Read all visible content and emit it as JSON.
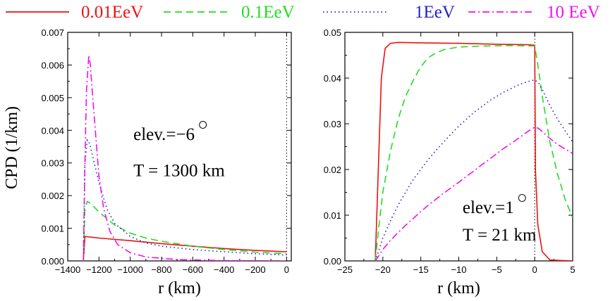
{
  "legend": [
    {
      "label": "0.01EeV",
      "color": "#ee1111",
      "dash": "solid"
    },
    {
      "label": "0.1EeV",
      "color": "#22dd22",
      "dash": "dashed"
    },
    {
      "label": "1EeV",
      "color": "#2222cc",
      "dash": "dotted"
    },
    {
      "label": "10 EeV",
      "color": "#ee11ee",
      "dash": "dashdot"
    }
  ],
  "ylabel": "CPD (1/km)",
  "chart_data": [
    {
      "type": "line",
      "xlabel": "r (km)",
      "ylabel": "CPD (1/km)",
      "xlim": [
        -1400,
        30
      ],
      "ylim": [
        0,
        0.007
      ],
      "xticks": [
        -1400,
        -1200,
        -1000,
        -800,
        -600,
        -400,
        -200,
        0
      ],
      "xtick_labels": [
        "−1400",
        "−1200",
        "−1000",
        "−800",
        "−600",
        "−400",
        "−200",
        "0"
      ],
      "yticks": [
        0,
        0.001,
        0.002,
        0.003,
        0.004,
        0.005,
        0.006,
        0.007
      ],
      "ytick_labels": [
        "0.000",
        "0.001",
        "0.002",
        "0.003",
        "0.004",
        "0.005",
        "0.006",
        "0.007"
      ],
      "vline_x": 0,
      "annotations": [
        {
          "text": "elev.=−6",
          "sup": "○",
          "x": -980,
          "y": 0.0037
        },
        {
          "text": "T = 1300 km",
          "x": -980,
          "y": 0.0026
        }
      ],
      "series": [
        {
          "name": "0.01EeV",
          "color": "#ee1111",
          "dash": "solid",
          "points": [
            [
              -1300,
              0
            ],
            [
              -1290,
              0.00075
            ],
            [
              -1200,
              0.0007
            ],
            [
              -1000,
              0.00062
            ],
            [
              -800,
              0.00053
            ],
            [
              -600,
              0.00045
            ],
            [
              -400,
              0.00038
            ],
            [
              -200,
              0.00032
            ],
            [
              0,
              0.00028
            ]
          ]
        },
        {
          "name": "0.1EeV",
          "color": "#22dd22",
          "dash": "dashed",
          "points": [
            [
              -1300,
              0
            ],
            [
              -1290,
              0.0016
            ],
            [
              -1275,
              0.00182
            ],
            [
              -1250,
              0.00175
            ],
            [
              -1200,
              0.0015
            ],
            [
              -1100,
              0.0011
            ],
            [
              -1000,
              0.00085
            ],
            [
              -900,
              0.0007
            ],
            [
              -800,
              0.0006
            ],
            [
              -600,
              0.00045
            ],
            [
              -400,
              0.00035
            ],
            [
              -200,
              0.00027
            ],
            [
              0,
              0.00022
            ]
          ]
        },
        {
          "name": "1EeV",
          "color": "#2222cc",
          "dash": "dotted",
          "points": [
            [
              -1300,
              0
            ],
            [
              -1290,
              0.003
            ],
            [
              -1275,
              0.0037
            ],
            [
              -1260,
              0.0036
            ],
            [
              -1240,
              0.0032
            ],
            [
              -1200,
              0.0024
            ],
            [
              -1150,
              0.0016
            ],
            [
              -1100,
              0.00115
            ],
            [
              -1000,
              0.00075
            ],
            [
              -900,
              0.00055
            ],
            [
              -800,
              0.00045
            ],
            [
              -600,
              0.00035
            ],
            [
              -400,
              0.00028
            ],
            [
              -200,
              0.00022
            ],
            [
              0,
              0.00018
            ]
          ]
        },
        {
          "name": "10 EeV",
          "color": "#ee11ee",
          "dash": "dashdot",
          "points": [
            [
              -1300,
              0
            ],
            [
              -1290,
              0.003
            ],
            [
              -1280,
              0.0052
            ],
            [
              -1265,
              0.0063
            ],
            [
              -1255,
              0.006
            ],
            [
              -1240,
              0.005
            ],
            [
              -1220,
              0.0038
            ],
            [
              -1200,
              0.0026
            ],
            [
              -1170,
              0.0016
            ],
            [
              -1130,
              0.0009
            ],
            [
              -1080,
              0.0005
            ],
            [
              -1000,
              0.00025
            ],
            [
              -900,
              0.00012
            ],
            [
              -700,
              4e-05
            ],
            [
              -400,
              1e-05
            ],
            [
              0,
              0.0
            ]
          ]
        }
      ]
    },
    {
      "type": "line",
      "xlabel": "r (km)",
      "xlim": [
        -25,
        5
      ],
      "ylim": [
        0,
        0.05
      ],
      "xticks": [
        -25,
        -20,
        -15,
        -10,
        -5,
        0,
        5
      ],
      "xtick_labels": [
        "−25",
        "−20",
        "−15",
        "−10",
        "−5",
        "0",
        "5"
      ],
      "yticks": [
        0,
        0.01,
        0.02,
        0.03,
        0.04,
        0.05
      ],
      "ytick_labels": [
        "0.00",
        "0.01",
        "0.02",
        "0.03",
        "0.04",
        "0.05"
      ],
      "vline_x": 0,
      "annotations": [
        {
          "text": "elev.=1",
          "sup": "○",
          "x": -9.5,
          "y": 0.0105
        },
        {
          "text": "T = 21 km",
          "x": -9.5,
          "y": 0.0045
        }
      ],
      "series": [
        {
          "name": "0.01EeV",
          "color": "#ee1111",
          "dash": "solid",
          "points": [
            [
              -21,
              0
            ],
            [
              -20.6,
              0.02
            ],
            [
              -20.2,
              0.04
            ],
            [
              -19.7,
              0.0465
            ],
            [
              -19.0,
              0.0476
            ],
            [
              -18,
              0.0478
            ],
            [
              -15,
              0.0477
            ],
            [
              -10,
              0.0476
            ],
            [
              -5,
              0.0474
            ],
            [
              -1,
              0.0473
            ],
            [
              0,
              0.0472
            ],
            [
              0.1,
              0.02
            ],
            [
              0.4,
              0.008
            ],
            [
              1,
              0.002
            ],
            [
              2,
              0.0002
            ],
            [
              5,
              0
            ]
          ]
        },
        {
          "name": "0.1EeV",
          "color": "#22dd22",
          "dash": "dashed",
          "points": [
            [
              -21,
              0
            ],
            [
              -20.5,
              0.008
            ],
            [
              -20,
              0.015
            ],
            [
              -19,
              0.024
            ],
            [
              -18,
              0.031
            ],
            [
              -17,
              0.036
            ],
            [
              -16,
              0.0395
            ],
            [
              -15,
              0.0425
            ],
            [
              -14,
              0.0445
            ],
            [
              -13,
              0.0455
            ],
            [
              -12,
              0.0462
            ],
            [
              -10,
              0.0468
            ],
            [
              -7,
              0.047
            ],
            [
              -3,
              0.0471
            ],
            [
              0,
              0.047
            ],
            [
              0.5,
              0.042
            ],
            [
              1,
              0.036
            ],
            [
              2,
              0.026
            ],
            [
              3,
              0.019
            ],
            [
              4,
              0.0135
            ],
            [
              5,
              0.0095
            ]
          ]
        },
        {
          "name": "1EeV",
          "color": "#2222cc",
          "dash": "dotted",
          "points": [
            [
              -21,
              0
            ],
            [
              -20.5,
              0.0025
            ],
            [
              -20,
              0.005
            ],
            [
              -19,
              0.0088
            ],
            [
              -18,
              0.0122
            ],
            [
              -17,
              0.015
            ],
            [
              -16,
              0.0178
            ],
            [
              -15,
              0.02
            ],
            [
              -14,
              0.0222
            ],
            [
              -13,
              0.0242
            ],
            [
              -12,
              0.026
            ],
            [
              -11,
              0.0278
            ],
            [
              -10,
              0.0295
            ],
            [
              -9,
              0.031
            ],
            [
              -8,
              0.0325
            ],
            [
              -7,
              0.0337
            ],
            [
              -6,
              0.035
            ],
            [
              -5,
              0.036
            ],
            [
              -4,
              0.037
            ],
            [
              -3,
              0.0378
            ],
            [
              -2,
              0.0386
            ],
            [
              -1,
              0.0392
            ],
            [
              0,
              0.0396
            ],
            [
              0.5,
              0.039
            ],
            [
              1,
              0.0375
            ],
            [
              2,
              0.034
            ],
            [
              3,
              0.031
            ],
            [
              4,
              0.0285
            ],
            [
              5,
              0.026
            ]
          ]
        },
        {
          "name": "10 EeV",
          "color": "#ee11ee",
          "dash": "dashdot",
          "points": [
            [
              -21,
              0
            ],
            [
              -20.5,
              0.0012
            ],
            [
              -20,
              0.0025
            ],
            [
              -19,
              0.0045
            ],
            [
              -18,
              0.0062
            ],
            [
              -17,
              0.0078
            ],
            [
              -16,
              0.0093
            ],
            [
              -15,
              0.0108
            ],
            [
              -14,
              0.0122
            ],
            [
              -13,
              0.0135
            ],
            [
              -12,
              0.0148
            ],
            [
              -11,
              0.016
            ],
            [
              -10,
              0.0172
            ],
            [
              -9,
              0.0185
            ],
            [
              -8,
              0.0197
            ],
            [
              -7,
              0.021
            ],
            [
              -6,
              0.0222
            ],
            [
              -5,
              0.0235
            ],
            [
              -4,
              0.0247
            ],
            [
              -3,
              0.0258
            ],
            [
              -2,
              0.027
            ],
            [
              -1,
              0.0282
            ],
            [
              0,
              0.0293
            ],
            [
              0.5,
              0.029
            ],
            [
              1,
              0.0283
            ],
            [
              2,
              0.0268
            ],
            [
              3,
              0.0255
            ],
            [
              4,
              0.0245
            ],
            [
              5,
              0.0235
            ]
          ]
        }
      ]
    }
  ]
}
